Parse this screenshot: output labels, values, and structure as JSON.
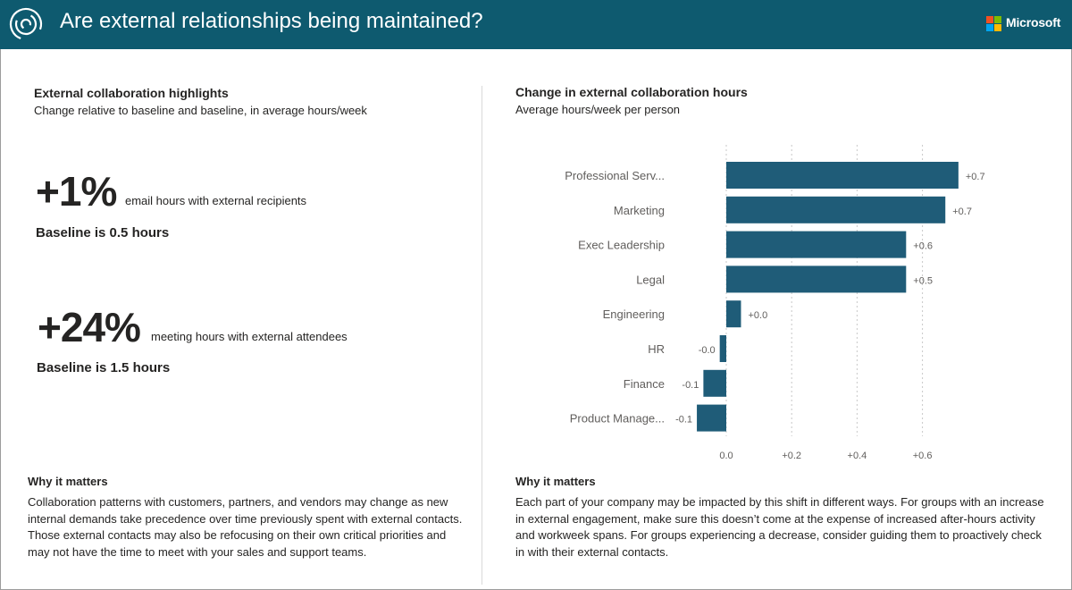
{
  "header": {
    "title": "Are external relationships being maintained?",
    "brand": "Microsoft",
    "background_color": "#0e5a6f"
  },
  "left": {
    "title": "External collaboration highlights",
    "subtitle": "Change relative to baseline and baseline, in average hours/week",
    "metrics": [
      {
        "value": "+1%",
        "description": "email hours with external recipients",
        "baseline": "Baseline is 0.5 hours"
      },
      {
        "value": "+24%",
        "description": "meeting hours with external attendees",
        "baseline": "Baseline is 1.5 hours"
      }
    ],
    "why": {
      "title": "Why it matters",
      "text": "Collaboration patterns with customers, partners, and vendors may change as new internal demands take precedence over time previously spent with external contacts. Those external contacts may also be refocusing on their own critical priorities and may not have the time to meet with your sales and support teams."
    }
  },
  "right": {
    "title": "Change in external collaboration hours",
    "subtitle": "Average hours/week per person",
    "why": {
      "title": "Why it matters",
      "text": "Each part of your company may be impacted by this shift in different ways. For groups with an increase in external engagement, make sure this doesn’t come at the expense of increased after-hours activity and workweek spans. For groups experiencing a decrease, consider guiding them to proactively check in with their external contacts."
    }
  },
  "chart_data": {
    "type": "bar",
    "orientation": "horizontal",
    "title": "Change in external collaboration hours",
    "subtitle": "Average hours/week per person",
    "categories": [
      "Professional Serv...",
      "Marketing",
      "Exec Leadership",
      "Legal",
      "Engineering",
      "HR",
      "Finance",
      "Product Manage..."
    ],
    "values": [
      0.71,
      0.67,
      0.55,
      0.55,
      0.045,
      -0.02,
      -0.07,
      -0.09
    ],
    "data_labels": [
      "+0.7",
      "+0.7",
      "+0.6",
      "+0.5",
      "+0.0",
      "-0.0",
      "-0.1",
      "-0.1"
    ],
    "x_ticks": [
      0,
      0.2,
      0.4,
      0.6
    ],
    "x_tick_labels": [
      "0.0",
      "+0.2",
      "+0.4",
      "+0.6"
    ],
    "xlim": [
      -0.09,
      0.72
    ],
    "grid": true,
    "bar_color": "#1f5c78"
  }
}
